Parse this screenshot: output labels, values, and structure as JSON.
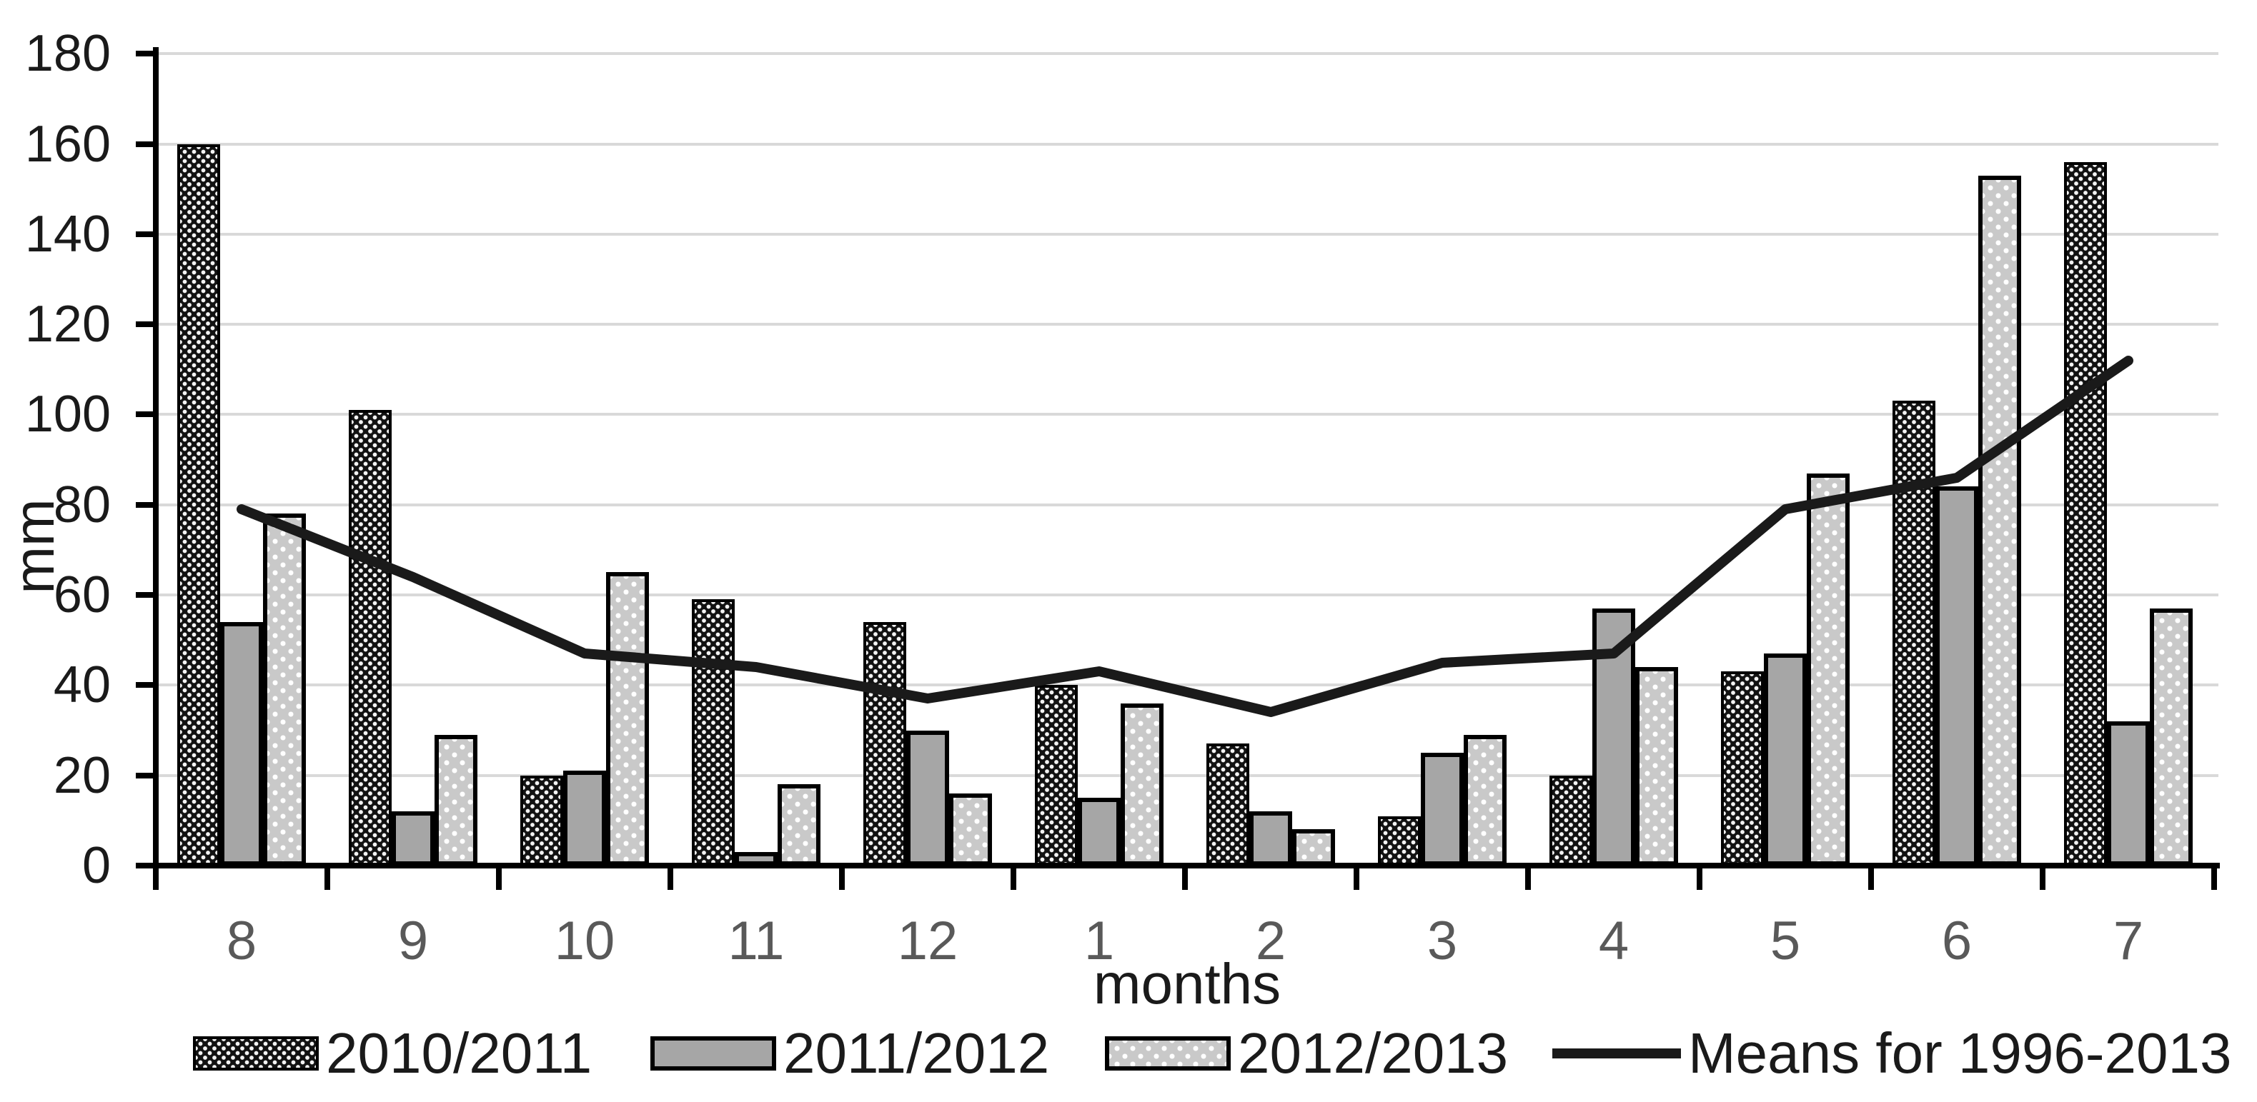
{
  "chart_data": {
    "type": "bar",
    "title": "",
    "xlabel": "months",
    "ylabel": "mm",
    "ylim": [
      0,
      180
    ],
    "ytick_step": 20,
    "grid": true,
    "legend_position": "bottom",
    "categories": [
      "8",
      "9",
      "10",
      "11",
      "12",
      "1",
      "2",
      "3",
      "4",
      "5",
      "6",
      "7"
    ],
    "series": [
      {
        "name": "2010/2011",
        "type": "bar",
        "pattern": "dark-dots",
        "values": [
          160,
          101,
          20,
          59,
          54,
          40,
          27,
          11,
          20,
          43,
          103,
          156
        ]
      },
      {
        "name": "2011/2012",
        "type": "bar",
        "pattern": "solid-gray",
        "values": [
          54,
          12,
          21,
          3,
          30,
          15,
          12,
          25,
          57,
          47,
          84,
          32
        ]
      },
      {
        "name": "2012/2013",
        "type": "bar",
        "pattern": "light-dots",
        "values": [
          78,
          29,
          65,
          18,
          16,
          36,
          8,
          29,
          44,
          87,
          153,
          57
        ]
      },
      {
        "name": "Means for 1996-2013",
        "type": "line",
        "values": [
          79,
          64,
          47,
          44,
          37,
          43,
          34,
          45,
          47,
          79,
          86,
          112
        ]
      }
    ]
  },
  "axes": {
    "y_tick_labels": [
      "0",
      "20",
      "40",
      "60",
      "80",
      "100",
      "120",
      "140",
      "160",
      "180"
    ]
  },
  "colors": {
    "grid": "#d9d9d9",
    "axis": "#000000",
    "y_label": "#1a1a1a",
    "x_label": "#595959",
    "bar_gray": "#a6a6a6",
    "bar_light_base": "#c9c9c9",
    "bar_dark_base": "#121212",
    "line": "#1a1a1a"
  }
}
